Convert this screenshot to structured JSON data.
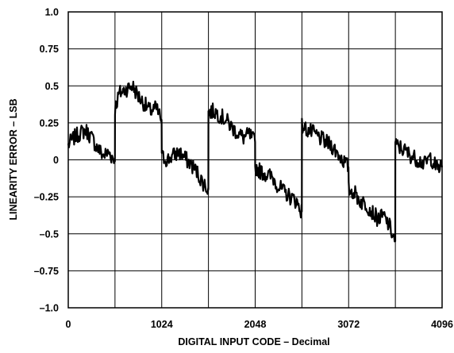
{
  "chart_data": {
    "type": "line",
    "title": "",
    "xlabel": "DIGITAL INPUT CODE – Decimal",
    "ylabel": "LINEARITY ERROR – LSB",
    "xlim": [
      0,
      4096
    ],
    "ylim": [
      -1.0,
      1.0
    ],
    "grid": true,
    "x_ticks": [
      0,
      512,
      1024,
      1536,
      2048,
      2560,
      3072,
      3584,
      4096
    ],
    "x_tick_labels": [
      "0",
      "",
      "1024",
      "",
      "2048",
      "",
      "3072",
      "",
      "4096"
    ],
    "y_ticks": [
      -1.0,
      -0.75,
      -0.5,
      -0.25,
      0,
      0.25,
      0.5,
      0.75,
      1.0
    ],
    "y_tick_labels": [
      "–1.0",
      "–0.75",
      "–0.5",
      "–0.25",
      "0",
      "0.25",
      "0.5",
      "0.75",
      "1.0"
    ],
    "line_color": "#000000",
    "series": [
      {
        "name": "",
        "x": [
          0,
          64,
          128,
          192,
          256,
          320,
          384,
          448,
          500,
          511,
          512,
          560,
          640,
          704,
          768,
          832,
          896,
          960,
          1000,
          1023,
          1024,
          1088,
          1152,
          1216,
          1280,
          1344,
          1408,
          1470,
          1535,
          1536,
          1600,
          1664,
          1728,
          1792,
          1856,
          1920,
          1984,
          2047,
          2048,
          2112,
          2176,
          2240,
          2304,
          2368,
          2432,
          2500,
          2559,
          2560,
          2624,
          2688,
          2752,
          2816,
          2880,
          2944,
          3008,
          3071,
          3072,
          3136,
          3200,
          3264,
          3328,
          3392,
          3456,
          3520,
          3583,
          3584,
          3648,
          3712,
          3776,
          3840,
          3904,
          3968,
          4032,
          4096
        ],
        "y": [
          0.1,
          0.15,
          0.18,
          0.2,
          0.15,
          0.08,
          0.03,
          0.05,
          0.0,
          -0.01,
          0.35,
          0.45,
          0.48,
          0.5,
          0.43,
          0.38,
          0.33,
          0.35,
          0.3,
          0.27,
          0.02,
          0.0,
          0.03,
          0.05,
          0.01,
          -0.03,
          -0.08,
          -0.15,
          -0.2,
          0.32,
          0.33,
          0.3,
          0.27,
          0.22,
          0.18,
          0.15,
          0.17,
          0.12,
          -0.05,
          -0.08,
          -0.1,
          -0.12,
          -0.18,
          -0.22,
          -0.25,
          -0.28,
          -0.35,
          0.23,
          0.2,
          0.18,
          0.15,
          0.12,
          0.1,
          0.05,
          0.0,
          -0.05,
          -0.2,
          -0.22,
          -0.28,
          -0.3,
          -0.35,
          -0.4,
          -0.38,
          -0.45,
          -0.55,
          0.1,
          0.08,
          0.05,
          0.02,
          0.0,
          -0.03,
          0.02,
          -0.05,
          -0.05
        ]
      }
    ]
  }
}
